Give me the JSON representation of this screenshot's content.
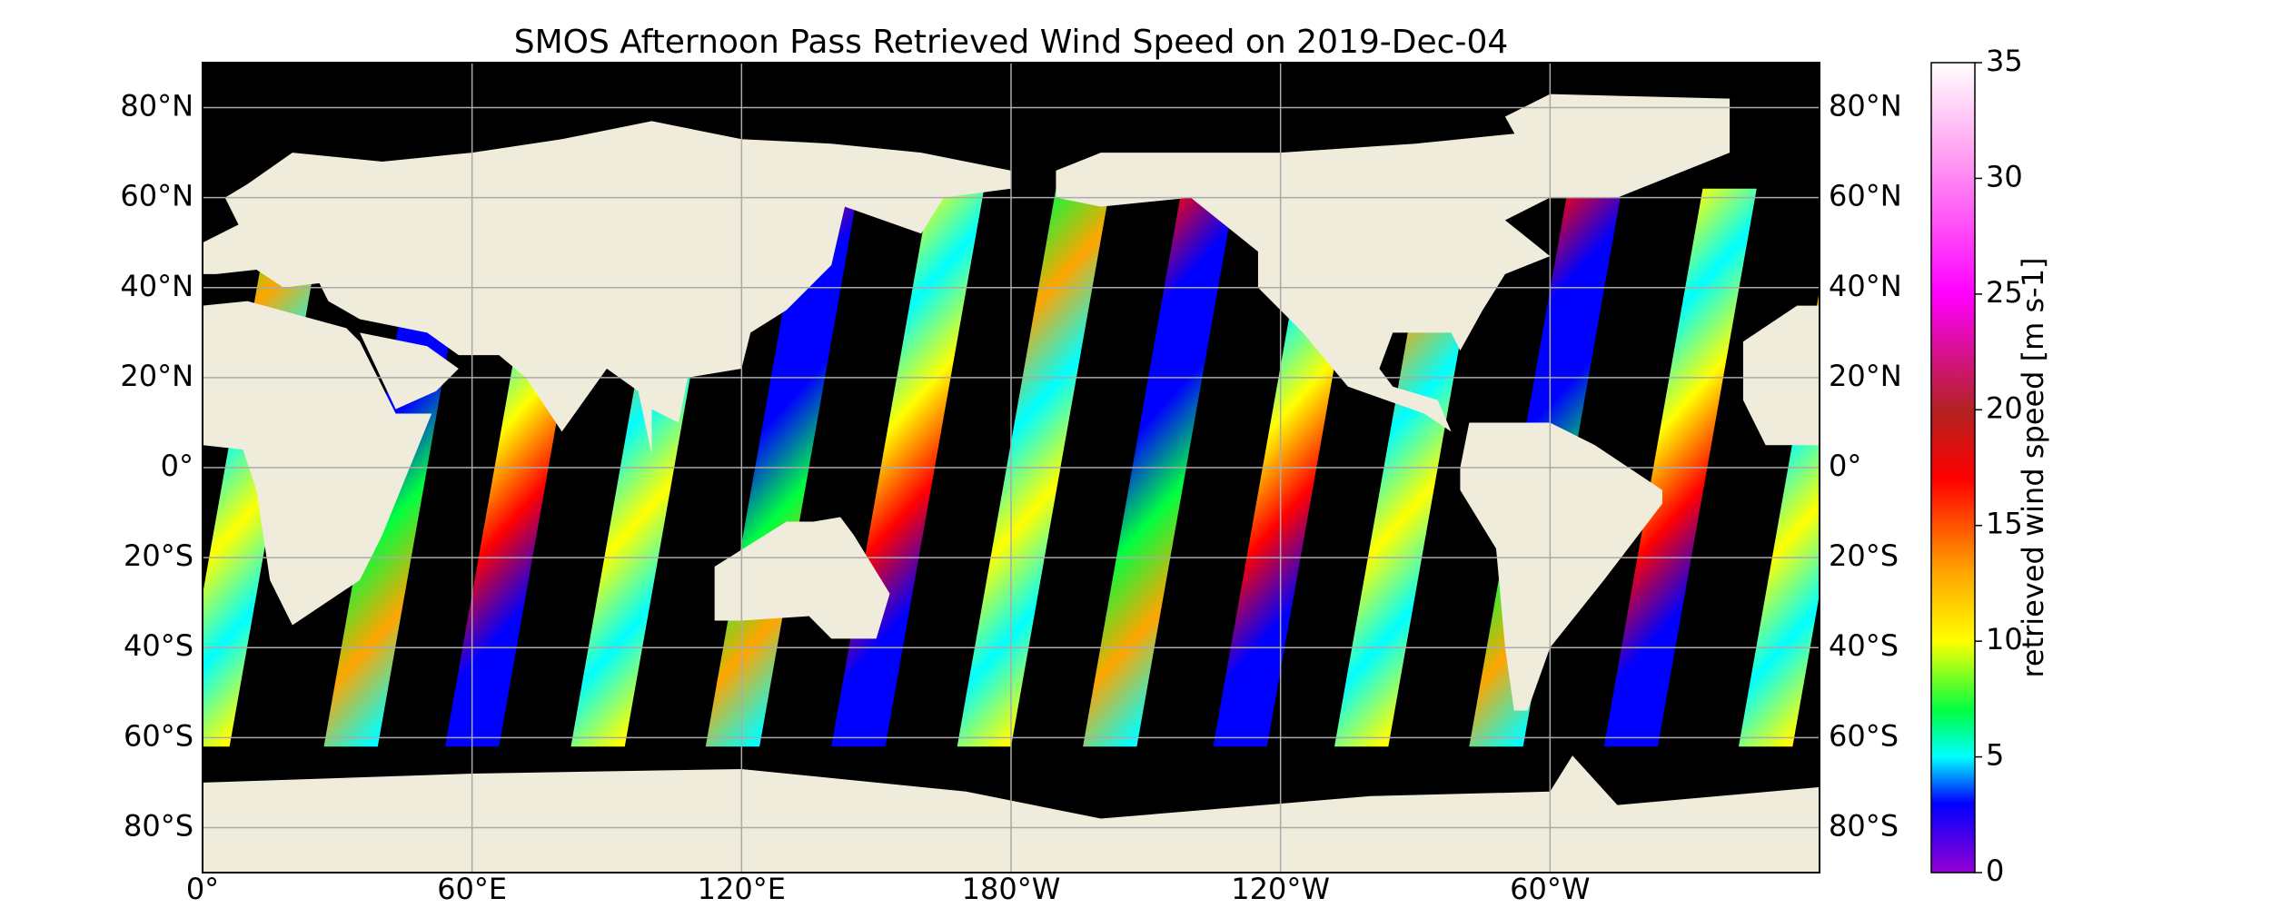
{
  "title": "SMOS Afternoon Pass Retrieved Wind Speed on 2019-Dec-04",
  "map": {
    "lonlim": [
      0,
      360
    ],
    "latlim": [
      -90,
      90
    ],
    "lat_ticks": [
      {
        "value": 80,
        "label": "80°N"
      },
      {
        "value": 60,
        "label": "60°N"
      },
      {
        "value": 40,
        "label": "40°N"
      },
      {
        "value": 20,
        "label": "20°N"
      },
      {
        "value": 0,
        "label": "0°"
      },
      {
        "value": -20,
        "label": "20°S"
      },
      {
        "value": -40,
        "label": "40°S"
      },
      {
        "value": -60,
        "label": "60°S"
      },
      {
        "value": -80,
        "label": "80°S"
      }
    ],
    "lon_ticks": [
      {
        "value": 0,
        "label": "0°"
      },
      {
        "value": 60,
        "label": "60°E"
      },
      {
        "value": 120,
        "label": "120°E"
      },
      {
        "value": 180,
        "label": "180°W"
      },
      {
        "value": 240,
        "label": "120°W"
      },
      {
        "value": 300,
        "label": "60°W"
      }
    ],
    "grid": true
  },
  "colorbar": {
    "label": "retrieved wind speed [m s-1]",
    "range": [
      0,
      35
    ],
    "ticks": [
      0,
      5,
      10,
      15,
      20,
      25,
      30,
      35
    ],
    "colormap": [
      {
        "value": 0,
        "color": "#9400d3"
      },
      {
        "value": 3,
        "color": "#0000ff"
      },
      {
        "value": 5,
        "color": "#00ffff"
      },
      {
        "value": 7,
        "color": "#00ff40"
      },
      {
        "value": 10,
        "color": "#ffff00"
      },
      {
        "value": 13,
        "color": "#ffa500"
      },
      {
        "value": 17,
        "color": "#ff0000"
      },
      {
        "value": 20,
        "color": "#b22222"
      },
      {
        "value": 25,
        "color": "#ff00ff"
      },
      {
        "value": 31,
        "color": "#ffa0f0"
      },
      {
        "value": 35,
        "color": "#ffffff"
      }
    ]
  }
}
